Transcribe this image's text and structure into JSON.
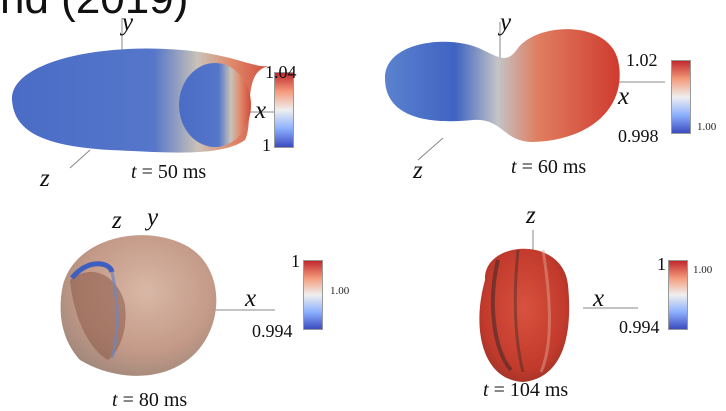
{
  "header": {
    "text": "nd (2019)"
  },
  "colors": {
    "low": "#3a5fc0",
    "mid": "#ececec",
    "high": "#c9312a"
  },
  "panels": [
    {
      "axes": {
        "y": "y",
        "x": "x",
        "z": "z"
      },
      "caption": {
        "t": "t",
        "rest": " = 50 ms"
      },
      "colorbar": {
        "max": "1.04",
        "min": "1",
        "mid": ""
      }
    },
    {
      "axes": {
        "y": "y",
        "x": "x",
        "z": "z"
      },
      "caption": {
        "t": "t",
        "rest": " = 60 ms"
      },
      "colorbar": {
        "max": "1.02",
        "min": "0.998",
        "mid": "1.00"
      }
    },
    {
      "axes": {
        "y": "y",
        "x": "x",
        "z": "z"
      },
      "caption": {
        "t": "t",
        "rest": " = 80 ms"
      },
      "colorbar": {
        "max": "1",
        "min": "0.994",
        "mid": "1.00"
      }
    },
    {
      "axes": {
        "y": "",
        "x": "x",
        "z": "z"
      },
      "caption": {
        "t": "t",
        "rest": " = 104 ms"
      },
      "colorbar": {
        "max": "1",
        "min": "0.994",
        "mid": "1.00"
      }
    }
  ]
}
